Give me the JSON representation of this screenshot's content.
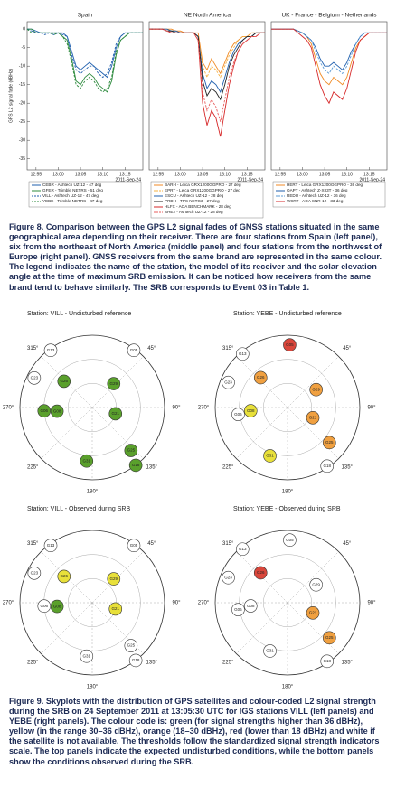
{
  "chart_data": [
    {
      "type": "line",
      "title": "Spain",
      "ylabel": "GPS L2 signal fade (dBHz)",
      "xlabel": "2011-Sep-24",
      "x": [
        "12:53",
        "12:54",
        "12:55",
        "12:56",
        "12:57",
        "12:58",
        "12:59",
        "13:00",
        "13:01",
        "13:02",
        "13:03",
        "13:04",
        "13:05",
        "13:06",
        "13:07",
        "13:08",
        "13:09",
        "13:10",
        "13:11",
        "13:12",
        "13:13",
        "13:14",
        "13:15",
        "13:16",
        "13:17",
        "13:18",
        "13:19"
      ],
      "xlim": [
        "12:53",
        "13:19"
      ],
      "xticks": [
        "12:55",
        "13:00",
        "13:05",
        "13:10",
        "13:15"
      ],
      "ylim": [
        -38,
        2
      ],
      "yticks": [
        0,
        -5,
        -10,
        -15,
        -20,
        -25,
        -30,
        -35
      ],
      "series": [
        {
          "name": "CEBR - Ashtech UZ-12 - 47 deg",
          "color": "#1f5fae",
          "dash": false,
          "values": [
            0,
            0,
            -0.5,
            -1,
            -1,
            -1,
            -1.5,
            -1,
            -1,
            -2,
            -6,
            -10,
            -11,
            -10,
            -9,
            -10,
            -11,
            -12,
            -13,
            -10,
            -5,
            -2,
            -1,
            -1,
            -1,
            -1,
            -1
          ]
        },
        {
          "name": "GFER - Trimble NETRS - 51 deg",
          "color": "#2e8b3e",
          "dash": false,
          "values": [
            0,
            0,
            -1,
            -1,
            -1,
            -1,
            -1,
            -1,
            -2,
            -3,
            -8,
            -14,
            -15,
            -13,
            -12,
            -13,
            -15,
            -16,
            -17,
            -14,
            -7,
            -3,
            -2,
            -1,
            -1,
            -1,
            -1
          ]
        },
        {
          "name": "VILL - Ashtech UZ-12 - 47 deg",
          "color": "#1f5fae",
          "dash": true,
          "values": [
            0,
            -0.5,
            -1,
            -1,
            -1.5,
            -1,
            -1,
            -1,
            -1.5,
            -2,
            -7,
            -11,
            -12,
            -11,
            -10,
            -10,
            -12,
            -13,
            -12,
            -9,
            -4,
            -2,
            -1,
            -1,
            -1,
            -1,
            -1
          ]
        },
        {
          "name": "YEBE - Trimble NETRS - 47 deg",
          "color": "#2e8b3e",
          "dash": true,
          "values": [
            0,
            -1,
            -1,
            -1,
            -1,
            -1,
            -1.5,
            -1,
            -2,
            -4,
            -9,
            -15,
            -16,
            -14,
            -13,
            -14,
            -16,
            -17,
            -16,
            -13,
            -6,
            -3,
            -2,
            -1,
            -1,
            -1,
            -1
          ]
        }
      ]
    },
    {
      "type": "line",
      "title": "NE North America",
      "xlabel": "2011-Sep-24",
      "x": [
        "12:53",
        "12:54",
        "12:55",
        "12:56",
        "12:57",
        "12:58",
        "12:59",
        "13:00",
        "13:01",
        "13:02",
        "13:03",
        "13:04",
        "13:05",
        "13:06",
        "13:07",
        "13:08",
        "13:09",
        "13:10",
        "13:11",
        "13:12",
        "13:13",
        "13:14",
        "13:15",
        "13:16",
        "13:17",
        "13:18",
        "13:19"
      ],
      "xlim": [
        "12:53",
        "13:19"
      ],
      "xticks": [
        "12:55",
        "13:00",
        "13:05",
        "13:10",
        "13:15"
      ],
      "ylim": [
        -38,
        2
      ],
      "series": [
        {
          "name": "BARH - Leica GRX1200GGPRO - 27 deg",
          "color": "#f08a24",
          "dash": false,
          "values": [
            0,
            0,
            0,
            0,
            0,
            0,
            -0.5,
            -0.5,
            -1,
            -1,
            -1,
            -1,
            -9,
            -11,
            -8,
            -10,
            -12,
            -9,
            -6,
            -4,
            -3,
            -2,
            -2,
            -1,
            -1,
            -1,
            -1
          ]
        },
        {
          "name": "EPRT - Leica GRX1200GGPRO - 27 deg",
          "color": "#f5b041",
          "dash": true,
          "values": [
            0,
            0,
            0,
            0,
            0,
            -0.5,
            -0.5,
            -1,
            -1,
            -1,
            -1,
            -2,
            -10,
            -13,
            -10,
            -11,
            -13,
            -10,
            -7,
            -5,
            -3,
            -2,
            -2,
            -1,
            -1,
            -1,
            -1
          ]
        },
        {
          "name": "ESCU - Ashtech UZ-12 - 28 deg",
          "color": "#1f5fae",
          "dash": false,
          "values": [
            0,
            0,
            0,
            0,
            0,
            -0.5,
            -0.5,
            -1,
            -1,
            -1,
            -1,
            -2,
            -12,
            -16,
            -14,
            -15,
            -17,
            -13,
            -9,
            -6,
            -4,
            -3,
            -2,
            -2,
            -1,
            -1,
            -1
          ]
        },
        {
          "name": "PRDH - TPS NETG3 - 27 deg",
          "color": "#222222",
          "dash": false,
          "values": [
            0,
            0,
            0,
            0,
            -0.5,
            -0.5,
            -1,
            -1,
            -1,
            -1,
            -1,
            -2,
            -14,
            -18,
            -16,
            -17,
            -19,
            -15,
            -10,
            -7,
            -5,
            -3,
            -2,
            -2,
            -1,
            -1,
            -1
          ]
        },
        {
          "name": "HLFX - AOA BENCHMARK - 28 deg",
          "color": "#d62728",
          "dash": false,
          "values": [
            0,
            0,
            0,
            0,
            -0.5,
            -1,
            -1,
            -1,
            -1,
            -1,
            -1,
            -3,
            -20,
            -26,
            -22,
            -24,
            -29,
            -22,
            -15,
            -10,
            -6,
            -4,
            -3,
            -2,
            -2,
            -1,
            -1
          ]
        },
        {
          "name": "SHE2 - Ashtech UZ-12 - 28 deg",
          "color": "#e85c5c",
          "dash": true,
          "values": [
            0,
            0,
            0,
            0,
            -0.5,
            -1,
            -1,
            -1,
            -1,
            -1,
            -1,
            -3,
            -17,
            -22,
            -19,
            -21,
            -25,
            -19,
            -13,
            -9,
            -6,
            -4,
            -3,
            -2,
            -2,
            -1,
            -1
          ]
        }
      ]
    },
    {
      "type": "line",
      "title": "UK - France - Belgium - Netherlands",
      "xlabel": "2011-Sep-24",
      "x": [
        "12:53",
        "12:54",
        "12:55",
        "12:56",
        "12:57",
        "12:58",
        "12:59",
        "13:00",
        "13:01",
        "13:02",
        "13:03",
        "13:04",
        "13:05",
        "13:06",
        "13:07",
        "13:08",
        "13:09",
        "13:10",
        "13:11",
        "13:12",
        "13:13",
        "13:14",
        "13:15",
        "13:16",
        "13:17",
        "13:18",
        "13:19"
      ],
      "xlim": [
        "12:53",
        "13:19"
      ],
      "xticks": [
        "12:55",
        "13:00",
        "13:05",
        "13:10",
        "13:15"
      ],
      "ylim": [
        -38,
        2
      ],
      "series": [
        {
          "name": "HERT - Leica GRX1200GGPRO - 36 deg",
          "color": "#f08a24",
          "dash": false,
          "values": [
            0,
            0,
            0,
            0,
            0,
            0,
            -0.5,
            -1,
            -2,
            -4,
            -8,
            -12,
            -14,
            -15,
            -13,
            -14,
            -15,
            -13,
            -9,
            -5,
            -3,
            -2,
            -1,
            -1,
            -1,
            -1,
            -1
          ]
        },
        {
          "name": "OAPT - Ashtech Z-XII3T - 36 deg",
          "color": "#1f5fae",
          "dash": false,
          "values": [
            0,
            0,
            0,
            0,
            0,
            0,
            -0.5,
            -1,
            -2,
            -3,
            -5,
            -8,
            -10,
            -10,
            -9,
            -10,
            -11,
            -9,
            -6,
            -4,
            -2,
            -1,
            -1,
            -1,
            -1,
            -1,
            -1
          ]
        },
        {
          "name": "REDU - Ashtech UZ-12 - 36 deg",
          "color": "#5b9bd5",
          "dash": true,
          "values": [
            0,
            0,
            0,
            0,
            0,
            0,
            -0.5,
            -1,
            -2,
            -3,
            -6,
            -9,
            -11,
            -12,
            -10,
            -11,
            -12,
            -10,
            -7,
            -4,
            -2,
            -1,
            -1,
            -1,
            -1,
            -1,
            -1
          ]
        },
        {
          "name": "WSRT - AOA SNR-12 - 33 deg",
          "color": "#d62728",
          "dash": false,
          "values": [
            0,
            0,
            0,
            0,
            0,
            0,
            -1,
            -2,
            -3,
            -5,
            -10,
            -15,
            -18,
            -20,
            -17,
            -18,
            -19,
            -16,
            -11,
            -6,
            -3,
            -2,
            -1,
            -1,
            -1,
            -1,
            -1
          ]
        }
      ]
    },
    {
      "type": "skyplot",
      "title": "Station: VILL   -   Undisturbed reference",
      "angle_ticks": [
        {
          "value": 315,
          "label": "315°"
        },
        {
          "value": 45,
          "label": "45°"
        },
        {
          "value": 270,
          "label": "270°"
        },
        {
          "value": 90,
          "label": "90°"
        },
        {
          "value": 225,
          "label": "225°"
        },
        {
          "value": 135,
          "label": "135°"
        },
        {
          "value": 180,
          "label": "180°"
        }
      ],
      "satellites": [
        "G05",
        "G13",
        "G23",
        "G26",
        "G06",
        "G08",
        "G29",
        "G21",
        "G25",
        "G18",
        "G31"
      ],
      "azimuth": [
        36,
        324,
        297,
        313,
        266,
        264,
        42,
        105,
        138,
        143,
        186
      ],
      "elevation": [
        2,
        2,
        9,
        42,
        30,
        46,
        50,
        60,
        18,
        0,
        23
      ],
      "colors": [
        "#ffffff",
        "#ffffff",
        "#ffffff",
        "#5aa02c",
        "#5aa02c",
        "#5aa02c",
        "#5aa02c",
        "#5aa02c",
        "#5aa02c",
        "#5aa02c",
        "#5aa02c"
      ]
    },
    {
      "type": "skyplot",
      "title": "Station: YEBE   -   Undisturbed reference",
      "angle_ticks": [
        {
          "value": 315,
          "label": "315°"
        },
        {
          "value": 45,
          "label": "45°"
        },
        {
          "value": 270,
          "label": "270°"
        },
        {
          "value": 90,
          "label": "90°"
        },
        {
          "value": 225,
          "label": "225°"
        },
        {
          "value": 135,
          "label": "135°"
        },
        {
          "value": 180,
          "label": "180°"
        }
      ],
      "satellites": [
        "G05",
        "G13",
        "G23",
        "G26",
        "G06",
        "G08",
        "G29",
        "G21",
        "G25",
        "G18",
        "G31"
      ],
      "azimuth": [
        2,
        320,
        293,
        318,
        262,
        265,
        58,
        112,
        130,
        146,
        200
      ],
      "elevation": [
        12,
        3,
        10,
        40,
        28,
        44,
        48,
        56,
        22,
        2,
        26
      ],
      "colors": [
        "#d9463b",
        "#ffffff",
        "#ffffff",
        "#f0a040",
        "#ffffff",
        "#e8e03a",
        "#f0a040",
        "#f0a040",
        "#f0a040",
        "#ffffff",
        "#e8e03a"
      ]
    },
    {
      "type": "skyplot",
      "title": "Station: VILL   -   Observed during SRB",
      "angle_ticks": [
        {
          "value": 315,
          "label": "315°"
        },
        {
          "value": 45,
          "label": "45°"
        },
        {
          "value": 270,
          "label": "270°"
        },
        {
          "value": 90,
          "label": "90°"
        },
        {
          "value": 225,
          "label": "225°"
        },
        {
          "value": 135,
          "label": "135°"
        },
        {
          "value": 180,
          "label": "180°"
        }
      ],
      "satellites": [
        "G05",
        "G13",
        "G23",
        "G26",
        "G06",
        "G08",
        "G29",
        "G21",
        "G25",
        "G18",
        "G31"
      ],
      "azimuth": [
        36,
        324,
        297,
        313,
        266,
        264,
        42,
        105,
        138,
        143,
        186
      ],
      "elevation": [
        2,
        2,
        9,
        42,
        30,
        46,
        50,
        60,
        18,
        0,
        23
      ],
      "colors": [
        "#ffffff",
        "#ffffff",
        "#ffffff",
        "#e8e03a",
        "#ffffff",
        "#5aa02c",
        "#e8e03a",
        "#e8e03a",
        "#ffffff",
        "#ffffff",
        "#ffffff"
      ]
    },
    {
      "type": "skyplot",
      "title": "Station: YEBE   -   Observed during SRB",
      "angle_ticks": [
        {
          "value": 315,
          "label": "315°"
        },
        {
          "value": 45,
          "label": "45°"
        },
        {
          "value": 270,
          "label": "270°"
        },
        {
          "value": 90,
          "label": "90°"
        },
        {
          "value": 225,
          "label": "225°"
        },
        {
          "value": 135,
          "label": "135°"
        },
        {
          "value": 180,
          "label": "180°"
        }
      ],
      "satellites": [
        "G05",
        "G13",
        "G23",
        "G26",
        "G06",
        "G08",
        "G29",
        "G21",
        "G25",
        "G18",
        "G31"
      ],
      "azimuth": [
        2,
        320,
        293,
        318,
        262,
        265,
        58,
        112,
        130,
        146,
        200
      ],
      "elevation": [
        12,
        3,
        10,
        40,
        28,
        44,
        48,
        56,
        22,
        2,
        26
      ],
      "colors": [
        "#ffffff",
        "#ffffff",
        "#ffffff",
        "#d9463b",
        "#ffffff",
        "#ffffff",
        "#ffffff",
        "#f0a040",
        "#f0a040",
        "#ffffff",
        "#ffffff"
      ]
    }
  ],
  "captions": [
    "Figure 8. Comparison between the GPS L2 signal fades of GNSS stations situated in the same geographical area depending on their receiver. There are four stations from Spain (left panel), six from the northeast of North America (middle panel) and four stations from the northwest of Europe (right panel). GNSS receivers from the same brand are represented in the same colour. The legend indicates the name of the station, the model of its receiver and the solar elevation angle at the time of maximum SRB emission. It can be noticed how receivers from the same brand tend to behave similarly. The SRB corresponds to Event 03 in Table 1.",
    "Figure 9. Skyplots with the distribution of GPS satellites and colour-coded L2 signal strength during the SRB on 24 September 2011 at 13:05:30 UTC for IGS stations VILL (left panels) and YEBE (right panels). The colour code is: green (for signal strengths higher than 36 dBHz), yellow (in the range 30–36 dBHz), orange (18–30 dBHz), red (lower than 18 dBHz) and white if the satellite is not available. The thresholds follow the standardized signal strength indicators scale. The top panels indicate the expected undisturbed conditions, while the bottom panels show the conditions observed during the SRB."
  ]
}
